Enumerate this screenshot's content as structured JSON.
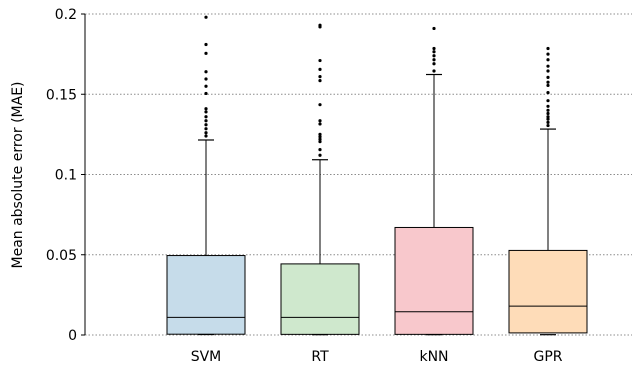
{
  "chart_data": {
    "type": "box",
    "ylabel": "Mean absolute error (MAE)",
    "ylim": [
      0,
      0.2
    ],
    "yticks": [
      {
        "value": 0,
        "label": "0"
      },
      {
        "value": 0.05,
        "label": "0.05"
      },
      {
        "value": 0.1,
        "label": "0.1"
      },
      {
        "value": 0.15,
        "label": "0.15"
      },
      {
        "value": 0.2,
        "label": "0.2"
      }
    ],
    "grid": "horizontal dotted",
    "series": [
      {
        "category": "SVM",
        "color": "#c6dcea",
        "whisker_low": 0.0003,
        "q1": 0.0005,
        "median": 0.011,
        "q3": 0.0495,
        "whisker_high": 0.1215,
        "outliers": [
          0.124,
          0.126,
          0.1285,
          0.131,
          0.1335,
          0.136,
          0.139,
          0.141,
          0.1505,
          0.155,
          0.1595,
          0.164,
          0.1755,
          0.181,
          0.198
        ]
      },
      {
        "category": "RT",
        "color": "#cfe8cd",
        "whisker_low": 0.0002,
        "q1": 0.0004,
        "median": 0.011,
        "q3": 0.0443,
        "whisker_high": 0.1092,
        "outliers": [
          0.112,
          0.1155,
          0.1205,
          0.122,
          0.1235,
          0.125,
          0.1315,
          0.1335,
          0.1435,
          0.1585,
          0.161,
          0.1655,
          0.171,
          0.192,
          0.193
        ]
      },
      {
        "category": "kNN",
        "color": "#f8c8cc",
        "whisker_low": 0.0002,
        "q1": 0.0004,
        "median": 0.0145,
        "q3": 0.067,
        "whisker_high": 0.1623,
        "outliers": [
          0.1645,
          0.169,
          0.1715,
          0.174,
          0.1765,
          0.1785,
          0.191
        ]
      },
      {
        "category": "GPR",
        "color": "#fedcb8",
        "whisker_low": 0.0002,
        "q1": 0.0013,
        "median": 0.018,
        "q3": 0.0527,
        "whisker_high": 0.1283,
        "outliers": [
          0.1305,
          0.1325,
          0.1345,
          0.136,
          0.138,
          0.14,
          0.1425,
          0.146,
          0.151,
          0.1555,
          0.1575,
          0.1605,
          0.1645,
          0.1675,
          0.1715,
          0.175,
          0.1785
        ]
      }
    ]
  }
}
